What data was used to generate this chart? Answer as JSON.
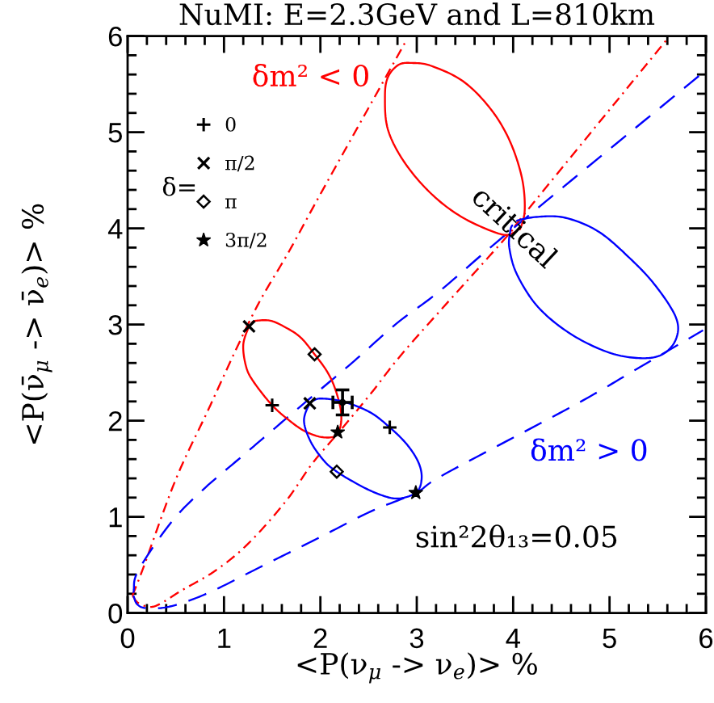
{
  "chart_data": {
    "type": "line",
    "title": "NuMI: E=2.3GeV and L=810km",
    "xlabel": "<P(ν$_{μ}$ -> ν$_{e}$)> %",
    "ylabel": "<P(ν̄$_{μ}$ -> ν̄$_{e}$)> %",
    "xlim": [
      0,
      6
    ],
    "ylim": [
      0,
      6
    ],
    "xticks": [
      0,
      {
        "value": 0.2,
        "label": null
      },
      {
        "value": 0.4,
        "label": null
      },
      {
        "value": 0.6,
        "label": null
      },
      {
        "value": 0.8,
        "label": null
      },
      1,
      {
        "value": 1.2,
        "label": null
      },
      {
        "value": 1.4,
        "label": null
      },
      {
        "value": 1.6,
        "label": null
      },
      {
        "value": 1.8,
        "label": null
      },
      2,
      {
        "value": 2.2,
        "label": null
      },
      {
        "value": 2.4,
        "label": null
      },
      {
        "value": 2.6,
        "label": null
      },
      {
        "value": 2.8,
        "label": null
      },
      3,
      {
        "value": 3.2,
        "label": null
      },
      {
        "value": 3.4,
        "label": null
      },
      {
        "value": 3.6,
        "label": null
      },
      {
        "value": 3.8,
        "label": null
      },
      4,
      {
        "value": 4.2,
        "label": null
      },
      {
        "value": 4.4,
        "label": null
      },
      {
        "value": 4.6,
        "label": null
      },
      {
        "value": 4.8,
        "label": null
      },
      5,
      {
        "value": 5.2,
        "label": null
      },
      {
        "value": 5.4,
        "label": null
      },
      {
        "value": 5.6,
        "label": null
      },
      {
        "value": 5.8,
        "label": null
      },
      6
    ],
    "yticks": [
      0,
      {
        "value": 0.2,
        "label": null
      },
      {
        "value": 0.4,
        "label": null
      },
      {
        "value": 0.6,
        "label": null
      },
      {
        "value": 0.8,
        "label": null
      },
      1,
      {
        "value": 1.2,
        "label": null
      },
      {
        "value": 1.4,
        "label": null
      },
      {
        "value": 1.6,
        "label": null
      },
      {
        "value": 1.8,
        "label": null
      },
      2,
      {
        "value": 2.2,
        "label": null
      },
      {
        "value": 2.4,
        "label": null
      },
      {
        "value": 2.6,
        "label": null
      },
      {
        "value": 2.8,
        "label": null
      },
      3,
      {
        "value": 3.2,
        "label": null
      },
      {
        "value": 3.4,
        "label": null
      },
      {
        "value": 3.6,
        "label": null
      },
      {
        "value": 3.8,
        "label": null
      },
      4,
      {
        "value": 4.2,
        "label": null
      },
      {
        "value": 4.4,
        "label": null
      },
      {
        "value": 4.6,
        "label": null
      },
      {
        "value": 4.8,
        "label": null
      },
      5,
      {
        "value": 5.2,
        "label": null
      },
      {
        "value": 5.4,
        "label": null
      },
      {
        "value": 5.6,
        "label": null
      },
      {
        "value": 5.8,
        "label": null
      },
      6
    ],
    "legend": "top left",
    "legend_title": "δ=",
    "annotations": [
      "sin²2θ₁₃=0.05",
      {
        "text": "critical",
        "x": 4.0,
        "y": 4.0
      }
    ],
    "series": [
      {
        "name": "δm² < 0",
        "color": "#ff0000",
        "line_style": "dashdot",
        "x": [
          0.05,
          0.17,
          0.5,
          0.84,
          1.12,
          1.37,
          1.68,
          2.03,
          2.9
        ],
        "values": [
          0.18,
          0.49,
          1.39,
          2.12,
          2.73,
          3.24,
          3.77,
          4.41,
          5.97
        ]
      },
      {
        "color": "#ff0000",
        "line_style": "dashdot",
        "x": [
          0.05,
          0.12,
          0.28,
          0.57,
          0.91,
          1.25,
          1.64,
          1.92,
          2.2,
          2.53,
          2.92,
          3.93,
          4.15,
          5.6
        ],
        "values": [
          0.18,
          0.1,
          0.07,
          0.24,
          0.44,
          0.72,
          1.16,
          1.56,
          1.89,
          2.29,
          2.78,
          3.91,
          4.19,
          5.97
        ]
      },
      {
        "color": "#0000ff",
        "line_style": "dashed",
        "x": [
          0.06,
          0.11,
          0.45,
          0.78,
          1.2,
          1.56,
          1.96,
          2.35,
          2.79,
          3.24,
          4.0,
          5.97
        ],
        "values": [
          0.21,
          0.44,
          0.94,
          1.28,
          1.64,
          1.95,
          2.29,
          2.62,
          3.01,
          3.35,
          4.0,
          5.62
        ]
      },
      {
        "name": "δm² > 0",
        "color": "#0000ff",
        "line_style": "dashed",
        "x": [
          0.06,
          0.1,
          0.2,
          0.45,
          0.84,
          1.4,
          1.96,
          2.51,
          2.99,
          3.3,
          4.65,
          5.32,
          5.97
        ],
        "values": [
          0.18,
          0.09,
          0.05,
          0.07,
          0.21,
          0.49,
          0.77,
          1.05,
          1.25,
          1.45,
          2.17,
          2.56,
          2.94
        ]
      },
      {
        "color": "#ff0000",
        "line_style": "solid",
        "x": [
          1.26,
          1.2,
          1.23,
          1.31,
          1.5,
          1.68,
          1.84,
          2.01,
          2.15,
          2.21,
          2.21,
          2.15,
          2.07,
          1.94,
          1.79,
          1.62,
          1.48,
          1.34,
          1.29
        ],
        "values": [
          2.98,
          2.79,
          2.56,
          2.4,
          2.16,
          2.0,
          1.89,
          1.83,
          1.84,
          1.95,
          2.12,
          2.34,
          2.51,
          2.69,
          2.87,
          2.98,
          3.04,
          3.04,
          3.02
        ]
      },
      {
        "color": "#0000ff",
        "line_style": "solid",
        "x": [
          1.89,
          1.83,
          1.9,
          2.04,
          2.17,
          2.35,
          2.57,
          2.79,
          2.99,
          3.05,
          3.02,
          2.9,
          2.72,
          2.51,
          2.23,
          2.01,
          1.93
        ],
        "values": [
          2.18,
          2.0,
          1.78,
          1.58,
          1.47,
          1.36,
          1.25,
          1.19,
          1.25,
          1.39,
          1.56,
          1.75,
          1.93,
          2.09,
          2.2,
          2.23,
          2.21
        ]
      },
      {
        "color": "#ff0000",
        "line_style": "solid",
        "x": [
          4.07,
          4.12,
          4.09,
          3.96,
          3.76,
          3.48,
          3.15,
          2.95,
          2.81,
          2.7,
          2.67,
          2.7,
          2.87,
          3.15,
          3.48,
          3.87,
          4.02
        ],
        "values": [
          3.99,
          4.19,
          4.53,
          4.92,
          5.25,
          5.53,
          5.69,
          5.72,
          5.7,
          5.57,
          5.37,
          5.03,
          4.69,
          4.36,
          4.11,
          3.94,
          3.96
        ]
      },
      {
        "color": "#0000ff",
        "line_style": "solid",
        "x": [
          4.04,
          4.26,
          4.54,
          4.88,
          5.21,
          5.48,
          5.69,
          5.69,
          5.55,
          5.32,
          4.99,
          4.6,
          4.26,
          4.04,
          3.96,
          3.97,
          3.99
        ],
        "values": [
          4.08,
          4.12,
          4.11,
          3.97,
          3.69,
          3.4,
          3.07,
          2.85,
          2.69,
          2.65,
          2.71,
          2.9,
          3.18,
          3.52,
          3.8,
          3.97,
          4.03
        ]
      },
      {
        "type": "scatter",
        "name": "0",
        "color": "#000000",
        "marker": "plus",
        "x": [
          1.5,
          2.72
        ],
        "values": [
          2.16,
          1.93
        ]
      },
      {
        "type": "scatter",
        "name": "π/2",
        "color": "#000000",
        "marker": "cross",
        "x": [
          1.26,
          1.89
        ],
        "values": [
          2.98,
          2.18
        ]
      },
      {
        "type": "scatter",
        "name": "π",
        "color": "#000000",
        "marker": "diamond",
        "x": [
          1.94,
          2.17
        ],
        "values": [
          2.69,
          1.47
        ]
      },
      {
        "type": "scatter",
        "name": "3π/2",
        "color": "#000000",
        "marker": "star",
        "x": [
          2.18,
          2.99
        ],
        "values": [
          1.88,
          1.25
        ]
      },
      {
        "type": "scatter",
        "color": "#000000",
        "marker": "circle",
        "x": [
          2.23
        ],
        "values": [
          2.19
        ],
        "errors": [
          0.13
        ],
        "xerrors": [
          0.1
        ]
      }
    ]
  }
}
